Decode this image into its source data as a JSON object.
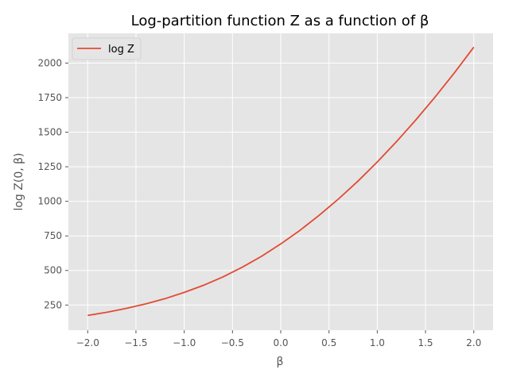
{
  "chart_data": {
    "type": "line",
    "title": "Log-partition function Z as a function of β",
    "xlabel": "β",
    "ylabel": "log Z(0, β)",
    "xlim": [
      -2.2,
      2.2
    ],
    "ylim": [
      68,
      2215
    ],
    "grid": true,
    "legend_position": "top-left",
    "x_ticks": [
      {
        "value": -2.0,
        "label": "−2.0"
      },
      {
        "value": -1.5,
        "label": "−1.5"
      },
      {
        "value": -1.0,
        "label": "−1.0"
      },
      {
        "value": -0.5,
        "label": "−0.5"
      },
      {
        "value": 0.0,
        "label": "0.0"
      },
      {
        "value": 0.5,
        "label": "0.5"
      },
      {
        "value": 1.0,
        "label": "1.0"
      },
      {
        "value": 1.5,
        "label": "1.5"
      },
      {
        "value": 2.0,
        "label": "2.0"
      }
    ],
    "y_ticks": [
      {
        "value": 250,
        "label": "250"
      },
      {
        "value": 500,
        "label": "500"
      },
      {
        "value": 750,
        "label": "750"
      },
      {
        "value": 1000,
        "label": "1000"
      },
      {
        "value": 1250,
        "label": "1250"
      },
      {
        "value": 1500,
        "label": "1500"
      },
      {
        "value": 1750,
        "label": "1750"
      },
      {
        "value": 2000,
        "label": "2000"
      }
    ],
    "series": [
      {
        "name": "log Z",
        "color": "#E24A33",
        "x": [
          -2.0,
          -1.8,
          -1.6,
          -1.4,
          -1.2,
          -1.0,
          -0.8,
          -0.6,
          -0.4,
          -0.2,
          0.0,
          0.2,
          0.4,
          0.6,
          0.8,
          1.0,
          1.2,
          1.4,
          1.6,
          1.8,
          2.0
        ],
        "y": [
          175,
          198,
          226,
          258,
          296,
          341,
          393,
          453,
          523,
          602,
          692,
          791,
          900,
          1018,
          1146,
          1285,
          1432,
          1589,
          1755,
          1930,
          2115
        ]
      }
    ]
  },
  "colors": {
    "plot_background": "#E5E5E5",
    "grid": "#FFFFFF",
    "tick": "#555555"
  }
}
